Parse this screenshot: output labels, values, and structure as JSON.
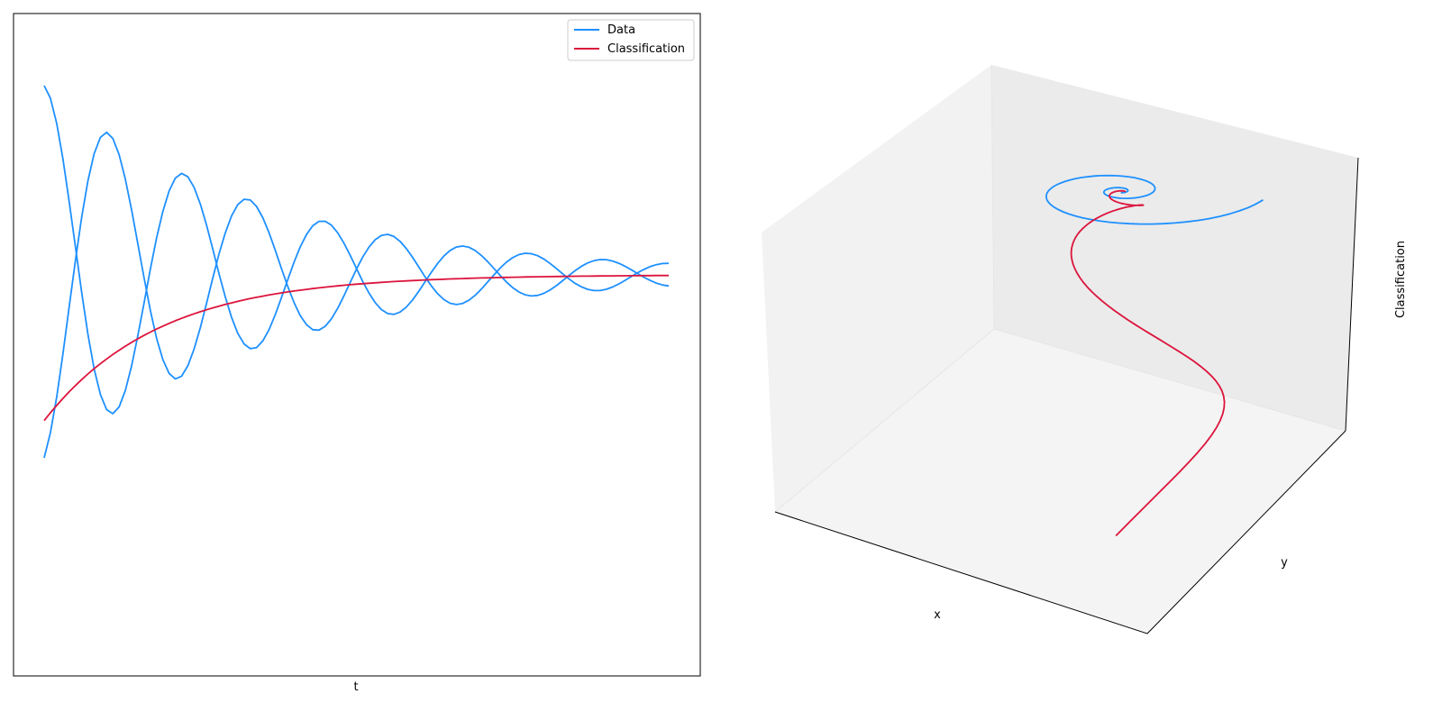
{
  "chart_data": [
    {
      "type": "line",
      "xlabel": "t",
      "ylabel": "",
      "grid": false,
      "ticks": "hidden",
      "legend": {
        "placement": "top-right",
        "entries": [
          "Data",
          "Classification"
        ]
      },
      "t_range": [
        0,
        100
      ],
      "series": [
        {
          "name": "Data",
          "color": "#1e90ff",
          "component": "x",
          "y_end_start": 1.0,
          "y_end_final": 0.0
        },
        {
          "name": "Data",
          "color": "#1e90ff",
          "component": "y",
          "y_end_start": -1.0,
          "y_end_final": 0.0
        },
        {
          "name": "Classification",
          "color": "#dc143c",
          "y_end_start": -0.4,
          "y_end_final": 0.0
        }
      ]
    },
    {
      "type": "line3d",
      "xlabel": "x",
      "ylabel": "y",
      "zlabel": "Classification",
      "grid": false,
      "ticks": "hidden",
      "series": [
        {
          "name": "Data",
          "color": "#1e90ff",
          "shape": "spiral in x-y plane at Classification = 0"
        },
        {
          "name": "Classification",
          "color": "#dc143c",
          "shape": "spiral rising to Classification = 0"
        }
      ]
    }
  ],
  "legend_labels": {
    "data": "Data",
    "classification": "Classification"
  },
  "axes_labels": {
    "left_x": "t",
    "right_x": "x",
    "right_y": "y",
    "right_z": "Classification"
  }
}
